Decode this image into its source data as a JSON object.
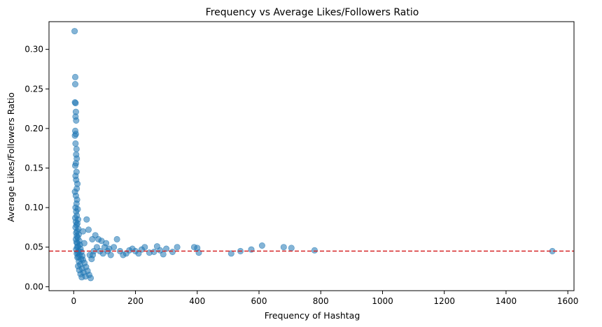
{
  "chart_data": {
    "type": "scatter",
    "title": "Frequency vs Average Likes/Followers Ratio",
    "xlabel": "Frequency of Hashtag",
    "ylabel": "Average Likes/Followers Ratio",
    "xlim": [
      -80,
      1620
    ],
    "ylim": [
      -0.005,
      0.335
    ],
    "xticks": [
      0,
      200,
      400,
      600,
      800,
      1000,
      1200,
      1400,
      1600
    ],
    "yticks": [
      0.0,
      0.05,
      0.1,
      0.15,
      0.2,
      0.25,
      0.3
    ],
    "xtick_labels": [
      "0",
      "200",
      "400",
      "600",
      "800",
      "1000",
      "1200",
      "1400",
      "1600"
    ],
    "ytick_labels": [
      "0.00",
      "0.05",
      "0.10",
      "0.15",
      "0.20",
      "0.25",
      "0.30"
    ],
    "grid": false,
    "point_color": "#1f77b4",
    "point_alpha": 0.55,
    "reference_line": {
      "orientation": "horizontal",
      "y": 0.045,
      "color": "#d62728",
      "style": "dashed"
    },
    "x": [
      3,
      5,
      5,
      4,
      6,
      7,
      6,
      8,
      5,
      7,
      4,
      6,
      9,
      8,
      10,
      7,
      5,
      9,
      6,
      8,
      12,
      10,
      4,
      7,
      11,
      9,
      6,
      13,
      8,
      10,
      5,
      14,
      7,
      12,
      9,
      6,
      15,
      11,
      8,
      16,
      10,
      13,
      7,
      18,
      9,
      12,
      20,
      14,
      11,
      22,
      8,
      16,
      25,
      13,
      10,
      19,
      28,
      15,
      12,
      24,
      30,
      17,
      35,
      21,
      14,
      40,
      27,
      18,
      45,
      32,
      22,
      50,
      38,
      26,
      55,
      42,
      30,
      60,
      48,
      34,
      65,
      70,
      52,
      75,
      80,
      58,
      85,
      90,
      62,
      95,
      100,
      105,
      110,
      115,
      120,
      130,
      140,
      150,
      160,
      170,
      180,
      190,
      200,
      210,
      220,
      230,
      245,
      260,
      270,
      280,
      290,
      300,
      320,
      335,
      390,
      400,
      405,
      510,
      540,
      575,
      610,
      680,
      705,
      780,
      1550
    ],
    "y": [
      0.323,
      0.265,
      0.256,
      0.233,
      0.232,
      0.221,
      0.215,
      0.21,
      0.197,
      0.193,
      0.191,
      0.181,
      0.174,
      0.167,
      0.162,
      0.156,
      0.153,
      0.145,
      0.14,
      0.135,
      0.13,
      0.124,
      0.12,
      0.115,
      0.11,
      0.105,
      0.1,
      0.098,
      0.095,
      0.09,
      0.087,
      0.085,
      0.082,
      0.08,
      0.078,
      0.075,
      0.073,
      0.07,
      0.068,
      0.066,
      0.064,
      0.062,
      0.06,
      0.058,
      0.056,
      0.055,
      0.053,
      0.051,
      0.05,
      0.048,
      0.047,
      0.045,
      0.044,
      0.043,
      0.042,
      0.04,
      0.039,
      0.038,
      0.037,
      0.035,
      0.034,
      0.032,
      0.03,
      0.028,
      0.026,
      0.025,
      0.023,
      0.021,
      0.02,
      0.018,
      0.016,
      0.015,
      0.013,
      0.012,
      0.011,
      0.085,
      0.07,
      0.06,
      0.072,
      0.055,
      0.045,
      0.065,
      0.04,
      0.05,
      0.06,
      0.035,
      0.045,
      0.058,
      0.04,
      0.042,
      0.05,
      0.055,
      0.045,
      0.048,
      0.04,
      0.05,
      0.06,
      0.045,
      0.04,
      0.042,
      0.046,
      0.048,
      0.045,
      0.042,
      0.047,
      0.05,
      0.043,
      0.044,
      0.051,
      0.046,
      0.041,
      0.048,
      0.044,
      0.05,
      0.05,
      0.049,
      0.043,
      0.042,
      0.045,
      0.047,
      0.052,
      0.05,
      0.049,
      0.046,
      0.045
    ]
  }
}
